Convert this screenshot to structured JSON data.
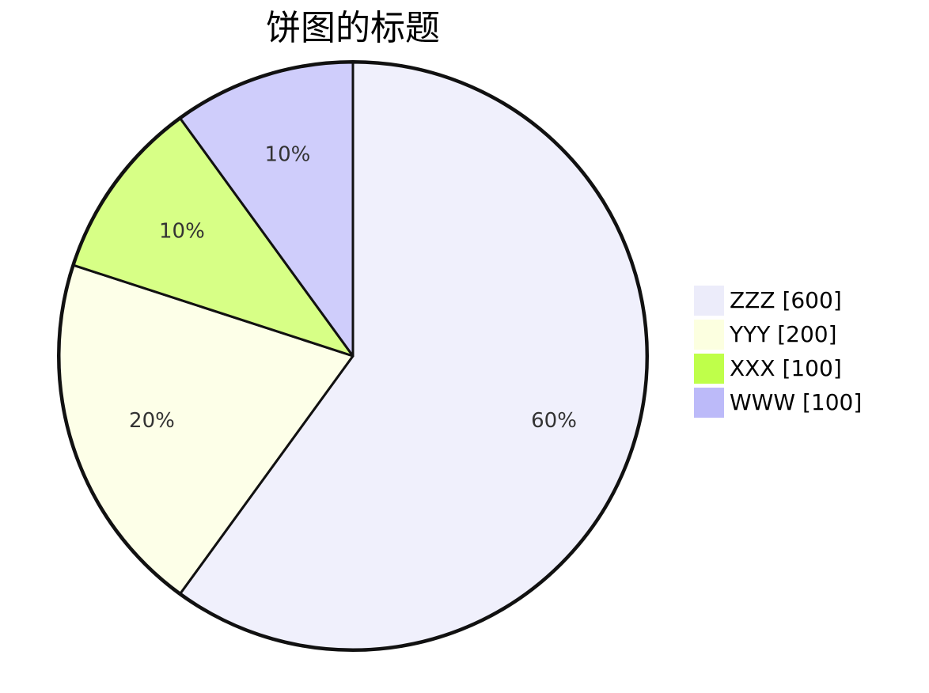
{
  "chart_data": {
    "type": "pie",
    "title": "饼图的标题",
    "slices": [
      {
        "label": "ZZZ",
        "value": 600,
        "percent_label": "60%",
        "legend_text": "ZZZ [600]",
        "color": "#f0f0fc",
        "legend_color": "#ececfa"
      },
      {
        "label": "YYY",
        "value": 200,
        "percent_label": "20%",
        "legend_text": "YYY [200]",
        "color": "#fdffe8",
        "legend_color": "#fcffe0"
      },
      {
        "label": "XXX",
        "value": 100,
        "percent_label": "10%",
        "legend_text": "XXX [100]",
        "color": "#d7ff86",
        "legend_color": "#bfff4a"
      },
      {
        "label": "WWW",
        "value": 100,
        "percent_label": "10%",
        "legend_text": "WWW [100]",
        "color": "#cfcdfb",
        "legend_color": "#bcbaf9"
      }
    ],
    "legend_position": "right",
    "start": "top",
    "direction": "clockwise",
    "stroke_color": "#111111"
  }
}
